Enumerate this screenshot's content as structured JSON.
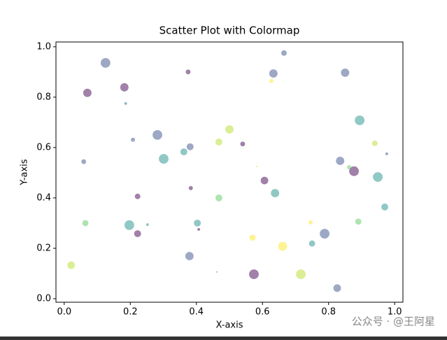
{
  "chart_data": {
    "type": "scatter",
    "title": "Scatter Plot with Colormap",
    "x_label": "X-axis",
    "y_label": "Y-axis",
    "x": [
      0.125,
      0.07,
      0.182,
      0.186,
      0.375,
      0.665,
      0.633,
      0.85,
      0.627,
      0.282,
      0.208,
      0.381,
      0.362,
      0.301,
      0.059,
      0.5,
      0.468,
      0.54,
      0.894,
      0.94,
      0.976,
      0.835,
      0.877,
      0.862,
      0.949,
      0.606,
      0.638,
      0.583,
      0.383,
      0.222,
      0.468,
      0.97,
      0.064,
      0.197,
      0.252,
      0.403,
      0.407,
      0.222,
      0.746,
      0.89,
      0.788,
      0.75,
      0.57,
      0.661,
      0.021,
      0.379,
      0.462,
      0.574,
      0.716,
      0.826
    ],
    "values": [
      0.936,
      0.817,
      0.839,
      0.775,
      0.9,
      0.975,
      0.894,
      0.897,
      0.864,
      0.65,
      0.631,
      0.603,
      0.583,
      0.555,
      0.544,
      0.672,
      0.622,
      0.614,
      0.708,
      0.617,
      0.575,
      0.547,
      0.506,
      0.522,
      0.483,
      0.469,
      0.419,
      0.525,
      0.439,
      0.406,
      0.4,
      0.364,
      0.3,
      0.292,
      0.294,
      0.3,
      0.275,
      0.258,
      0.303,
      0.306,
      0.258,
      0.219,
      0.242,
      0.208,
      0.133,
      0.169,
      0.106,
      0.097,
      0.097,
      0.042
    ],
    "sizes": [
      98,
      72,
      72,
      8,
      24,
      32,
      72,
      72,
      18,
      98,
      18,
      50,
      50,
      98,
      24,
      72,
      50,
      24,
      98,
      32,
      8,
      72,
      98,
      18,
      98,
      60,
      72,
      2,
      18,
      32,
      50,
      50,
      40,
      98,
      8,
      50,
      8,
      50,
      18,
      40,
      98,
      40,
      40,
      84,
      60,
      72,
      2,
      98,
      98,
      60
    ],
    "colors": [
      "#3b528b",
      "#440154",
      "#440154",
      "#2c728e",
      "#440154",
      "#3b528b",
      "#3b528b",
      "#3b528b",
      "#fde725",
      "#3b528b",
      "#3b528b",
      "#3b528b",
      "#21918c",
      "#21918c",
      "#3b528b",
      "#b5de2b",
      "#b5de2b",
      "#440154",
      "#21918c",
      "#b5de2b",
      "#3b528b",
      "#3b528b",
      "#440154",
      "#5ec962",
      "#21918c",
      "#440154",
      "#21918c",
      "#b5de2b",
      "#440154",
      "#440154",
      "#5ec962",
      "#21918c",
      "#5ec962",
      "#21918c",
      "#21918c",
      "#21918c",
      "#440154",
      "#440154",
      "#fde725",
      "#5ec962",
      "#3b528b",
      "#21918c",
      "#fde725",
      "#fde725",
      "#b5de2b",
      "#3b528b",
      "#21918c",
      "#440154",
      "#b5de2b",
      "#3b528b"
    ],
    "alpha": 0.5,
    "xlim": [
      -0.025,
      1.025
    ],
    "ylim": [
      -0.014,
      1.019
    ],
    "xticks": [
      {
        "value": 0,
        "label": "0.0"
      },
      {
        "value": 0.2,
        "label": "0.2"
      },
      {
        "value": 0.4,
        "label": "0.4"
      },
      {
        "value": 0.6,
        "label": "0.6"
      },
      {
        "value": 0.8,
        "label": "0.8"
      },
      {
        "value": 1,
        "label": "1.0"
      }
    ],
    "yticks": [
      {
        "value": 0,
        "label": "0.0"
      },
      {
        "value": 0.2,
        "label": "0.2"
      },
      {
        "value": 0.4,
        "label": "0.4"
      },
      {
        "value": 0.6,
        "label": "0.6"
      },
      {
        "value": 0.8,
        "label": "0.8"
      },
      {
        "value": 1,
        "label": "1.0"
      }
    ]
  },
  "watermark": "公众号 · @王阿星"
}
